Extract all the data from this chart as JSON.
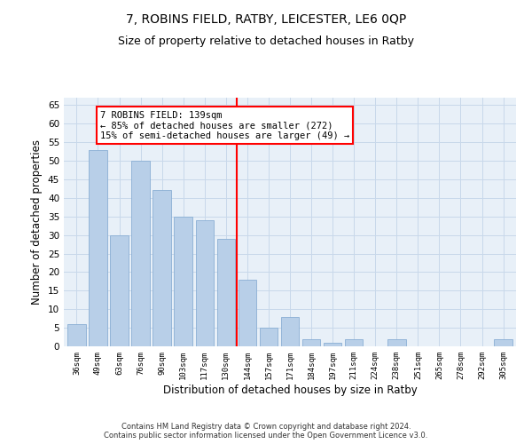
{
  "title1": "7, ROBINS FIELD, RATBY, LEICESTER, LE6 0QP",
  "title2": "Size of property relative to detached houses in Ratby",
  "xlabel": "Distribution of detached houses by size in Ratby",
  "ylabel": "Number of detached properties",
  "categories": [
    "36sqm",
    "49sqm",
    "63sqm",
    "76sqm",
    "90sqm",
    "103sqm",
    "117sqm",
    "130sqm",
    "144sqm",
    "157sqm",
    "171sqm",
    "184sqm",
    "197sqm",
    "211sqm",
    "224sqm",
    "238sqm",
    "251sqm",
    "265sqm",
    "278sqm",
    "292sqm",
    "305sqm"
  ],
  "values": [
    6,
    53,
    30,
    50,
    42,
    35,
    34,
    29,
    18,
    5,
    8,
    2,
    1,
    2,
    0,
    2,
    0,
    0,
    0,
    0,
    2
  ],
  "bar_color": "#b8cfe8",
  "bar_edge_color": "#8aafd4",
  "vline_x_index": 8,
  "annotation_text": "7 ROBINS FIELD: 139sqm\n← 85% of detached houses are smaller (272)\n15% of semi-detached houses are larger (49) →",
  "annotation_box_color": "white",
  "annotation_box_edge_color": "red",
  "vline_color": "red",
  "ylim": [
    0,
    67
  ],
  "yticks": [
    0,
    5,
    10,
    15,
    20,
    25,
    30,
    35,
    40,
    45,
    50,
    55,
    60,
    65
  ],
  "grid_color": "#c8d8ea",
  "bg_color": "#e8f0f8",
  "footer": "Contains HM Land Registry data © Crown copyright and database right 2024.\nContains public sector information licensed under the Open Government Licence v3.0.",
  "title1_fontsize": 10,
  "title2_fontsize": 9,
  "xlabel_fontsize": 8.5,
  "ylabel_fontsize": 8.5,
  "annot_fontsize": 7.5
}
